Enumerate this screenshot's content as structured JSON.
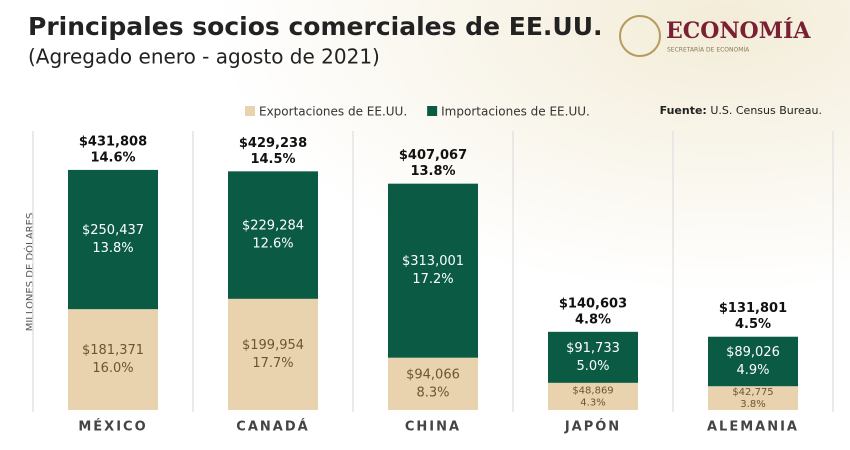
{
  "header": {
    "title": "Principales socios comerciales de EE.UU.",
    "subtitle": "(Agregado enero - agosto de 2021)",
    "logo": "ECONOMÍA",
    "logo_sub": "SECRETARÍA DE ECONOMÍA"
  },
  "source": {
    "label": "Fuente:",
    "text": "U.S. Census Bureau."
  },
  "chart_data": {
    "type": "stacked_bar",
    "y_label": "MILLONES DE DÓLARES",
    "categories": [
      "MÉXICO",
      "CANADÁ",
      "CHINA",
      "JAPÓN",
      "ALEMANIA"
    ],
    "ylim": [
      0,
      500000
    ],
    "legend": "top",
    "series": [
      {
        "name": "Exportaciones de EE.UU.",
        "color": "#e8d3ae",
        "values": [
          181371,
          199954,
          94066,
          48869,
          42775
        ],
        "value_labels": [
          "$181,371",
          "$199,954",
          "$94,066",
          "$48,869",
          "$42,775"
        ],
        "shares": [
          16.0,
          17.7,
          8.3,
          4.3,
          3.8
        ],
        "share_labels": [
          "16.0%",
          "17.7%",
          "8.3%",
          "4.3%",
          "3.8%"
        ]
      },
      {
        "name": "Importaciones de EE.UU.",
        "color": "#0b5a44",
        "values": [
          250437,
          229284,
          313001,
          91733,
          89026
        ],
        "value_labels": [
          "$250,437",
          "$229,284",
          "$313,001",
          "$91,733",
          "$89,026"
        ],
        "shares": [
          13.8,
          12.6,
          17.2,
          5.0,
          4.9
        ],
        "share_labels": [
          "13.8%",
          "12.6%",
          "17.2%",
          "5.0%",
          "4.9%"
        ]
      }
    ],
    "totals": [
      431808,
      429238,
      407067,
      140603,
      131801
    ],
    "total_labels": [
      "$431,808",
      "$429,238",
      "$407,067",
      "$140,603",
      "$131,801"
    ],
    "total_shares": [
      14.6,
      14.5,
      13.8,
      4.8,
      4.5
    ],
    "total_share_labels": [
      "14.6%",
      "14.5%",
      "13.8%",
      "4.8%",
      "4.5%"
    ]
  }
}
